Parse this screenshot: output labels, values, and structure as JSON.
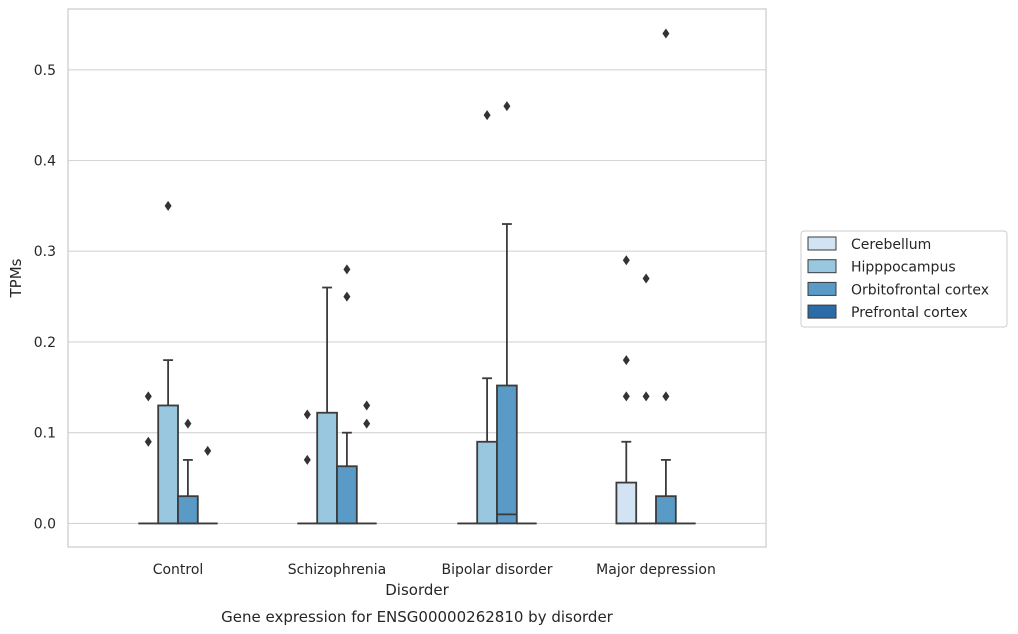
{
  "chart_data": {
    "type": "box",
    "xlabel": "Disorder",
    "ylabel": "TPMs",
    "caption": "Gene expression for ENSG00000262810 by disorder",
    "categories": [
      "Control",
      "Schizophrenia",
      "Bipolar disorder",
      "Major depression"
    ],
    "ylim": [
      -0.026,
      0.567
    ],
    "yticks": [
      0.0,
      0.1,
      0.2,
      0.3,
      0.4,
      0.5
    ],
    "ytick_labels": [
      "0.0",
      "0.1",
      "0.2",
      "0.3",
      "0.4",
      "0.5"
    ],
    "grid": "horizontal",
    "legend_position": "right",
    "series": [
      {
        "name": "Cerebellum",
        "color": "#d2e3f3",
        "boxes": [
          {
            "category": "Control",
            "min": 0,
            "q1": 0,
            "median": 0,
            "q3": 0,
            "max": 0,
            "outliers": [
              0.14,
              0.09
            ]
          },
          {
            "category": "Schizophrenia",
            "min": 0,
            "q1": 0,
            "median": 0,
            "q3": 0,
            "max": 0,
            "outliers": [
              0.12,
              0.07
            ]
          },
          {
            "category": "Bipolar disorder",
            "min": 0,
            "q1": 0,
            "median": 0,
            "q3": 0,
            "max": 0,
            "outliers": []
          },
          {
            "category": "Major depression",
            "min": 0,
            "q1": 0,
            "median": 0,
            "q3": 0.045,
            "max": 0.09,
            "outliers": [
              0.29,
              0.18,
              0.14
            ]
          }
        ]
      },
      {
        "name": "Hipppocampus",
        "color": "#9ac7e0",
        "boxes": [
          {
            "category": "Control",
            "min": 0,
            "q1": 0,
            "median": 0,
            "q3": 0.13,
            "max": 0.18,
            "outliers": [
              0.35
            ]
          },
          {
            "category": "Schizophrenia",
            "min": 0,
            "q1": 0,
            "median": 0,
            "q3": 0.122,
            "max": 0.26,
            "outliers": []
          },
          {
            "category": "Bipolar disorder",
            "min": 0,
            "q1": 0,
            "median": 0,
            "q3": 0.09,
            "max": 0.16,
            "outliers": [
              0.45
            ]
          },
          {
            "category": "Major depression",
            "min": 0,
            "q1": 0,
            "median": 0,
            "q3": 0,
            "max": 0,
            "outliers": [
              0.27,
              0.14
            ]
          }
        ]
      },
      {
        "name": "Orbitofrontal cortex",
        "color": "#5a9ac6",
        "boxes": [
          {
            "category": "Control",
            "min": 0,
            "q1": 0,
            "median": 0,
            "q3": 0.03,
            "max": 0.07,
            "outliers": [
              0.11
            ]
          },
          {
            "category": "Schizophrenia",
            "min": 0,
            "q1": 0,
            "median": 0,
            "q3": 0.063,
            "max": 0.1,
            "outliers": [
              0.28,
              0.25
            ]
          },
          {
            "category": "Bipolar disorder",
            "min": 0,
            "q1": 0,
            "median": 0.01,
            "q3": 0.152,
            "max": 0.33,
            "outliers": [
              0.46
            ]
          },
          {
            "category": "Major depression",
            "min": 0,
            "q1": 0,
            "median": 0,
            "q3": 0.03,
            "max": 0.07,
            "outliers": [
              0.54,
              0.14
            ]
          }
        ]
      },
      {
        "name": "Prefrontal cortex",
        "color": "#2c6aa8",
        "boxes": [
          {
            "category": "Control",
            "min": 0,
            "q1": 0,
            "median": 0,
            "q3": 0,
            "max": 0,
            "outliers": [
              0.08
            ]
          },
          {
            "category": "Schizophrenia",
            "min": 0,
            "q1": 0,
            "median": 0,
            "q3": 0,
            "max": 0,
            "outliers": [
              0.13,
              0.11
            ]
          },
          {
            "category": "Bipolar disorder",
            "min": 0,
            "q1": 0,
            "median": 0,
            "q3": 0,
            "max": 0,
            "outliers": []
          },
          {
            "category": "Major depression",
            "min": 0,
            "q1": 0,
            "median": 0,
            "q3": 0,
            "max": 0,
            "outliers": []
          }
        ]
      }
    ],
    "colors": {
      "grid": "#d5d5d5",
      "frame": "#cccccc",
      "box_edge": "#3b3b3b",
      "outlier": "#333333"
    }
  }
}
